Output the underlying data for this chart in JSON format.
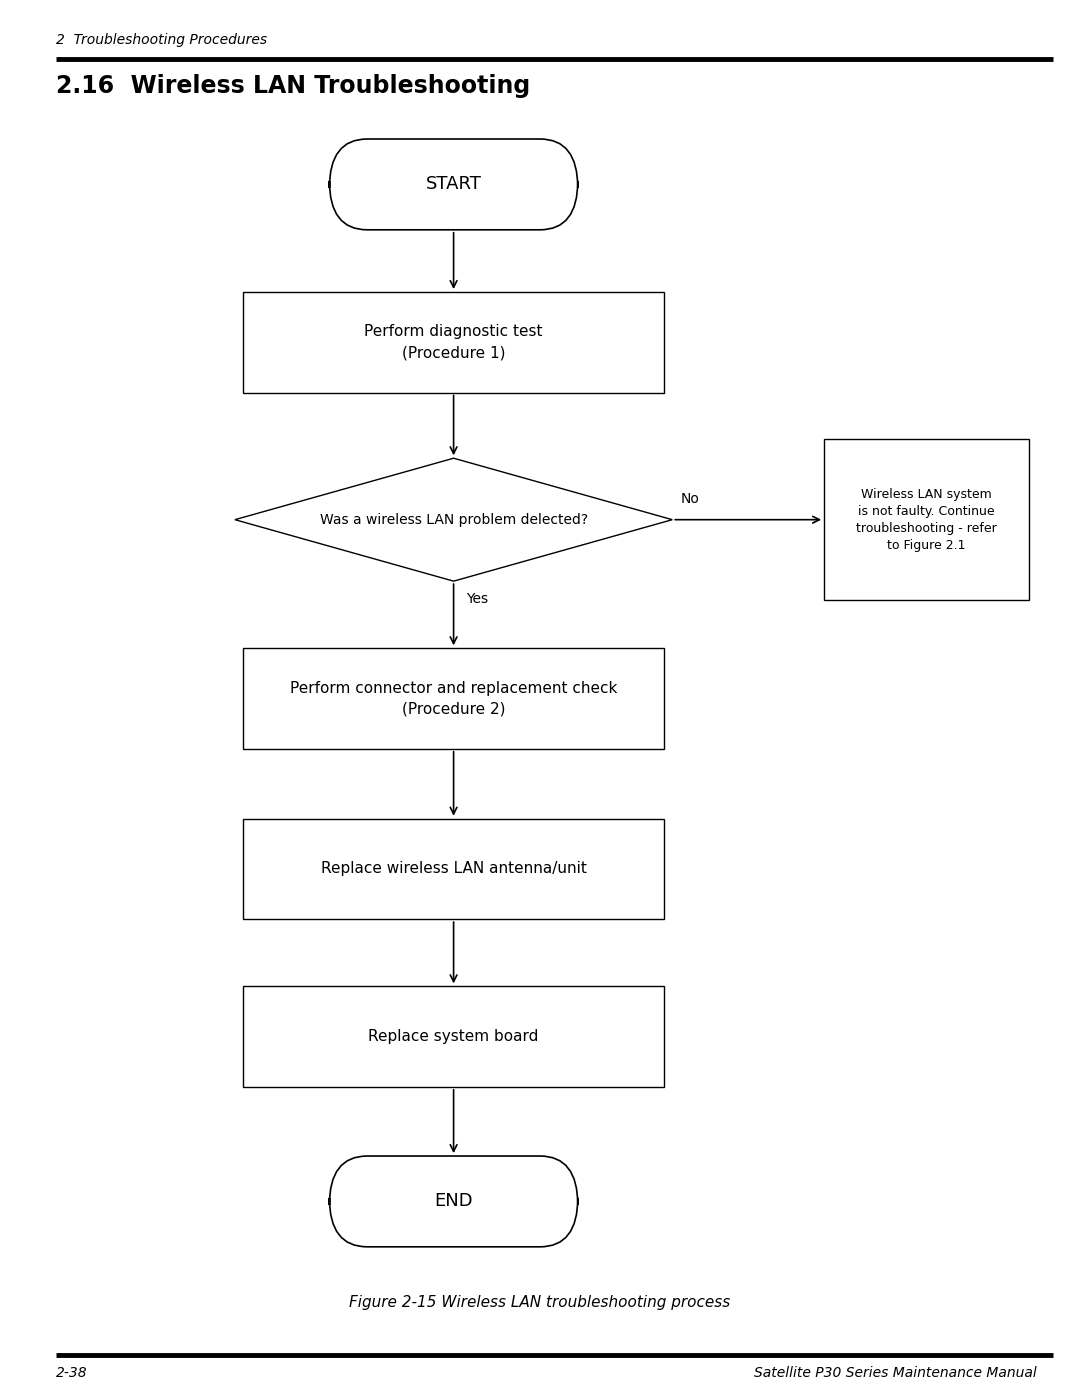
{
  "header_text": "2  Troubleshooting Procedures",
  "section_title": "2.16  Wireless LAN Troubleshooting",
  "footer_left": "2-38",
  "footer_right": "Satellite P30 Series Maintenance Manual",
  "figure_caption": "Figure 2-15 Wireless LAN troubleshooting process",
  "bg_color": "#ffffff",
  "box_color": "#000000",
  "text_color": "#000000",
  "arrow_color": "#000000"
}
